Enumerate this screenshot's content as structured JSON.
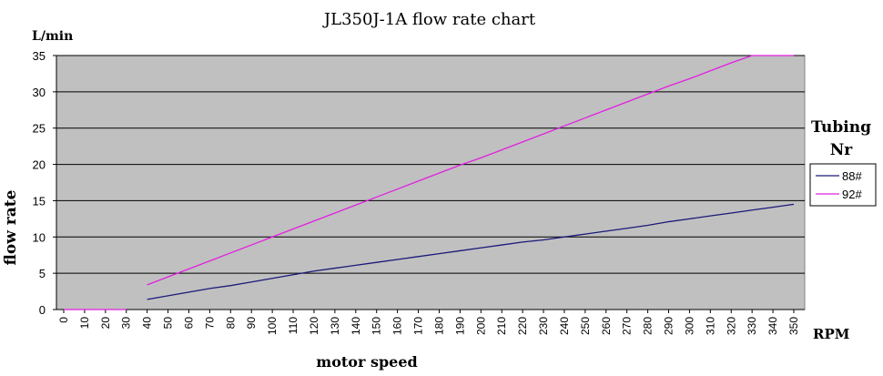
{
  "chart_data": {
    "type": "line",
    "title": "JL350J-1A flow rate chart",
    "xlabel": "motor speed",
    "ylabel": "flow rate",
    "x_unit": "RPM",
    "y_unit": "L/min",
    "x": [
      0,
      10,
      20,
      30,
      40,
      50,
      60,
      70,
      80,
      90,
      100,
      110,
      120,
      130,
      140,
      150,
      160,
      170,
      180,
      190,
      200,
      210,
      220,
      230,
      240,
      250,
      260,
      270,
      280,
      290,
      300,
      310,
      320,
      330,
      340,
      350
    ],
    "ylim": [
      0,
      35
    ],
    "yticks": [
      0,
      5,
      10,
      15,
      20,
      25,
      30,
      35
    ],
    "grid": true,
    "legend": {
      "title": "Tubing Nr",
      "placement": "right"
    },
    "series": [
      {
        "name": "88#",
        "color": "#1a1a7a",
        "values": [
          0,
          0,
          0,
          0,
          1.4,
          1.9,
          2.4,
          2.9,
          3.3,
          3.8,
          4.3,
          4.8,
          5.3,
          5.7,
          6.1,
          6.5,
          6.9,
          7.3,
          7.7,
          8.1,
          8.5,
          8.9,
          9.3,
          9.6,
          10.0,
          10.4,
          10.8,
          11.2,
          11.6,
          12.1,
          12.5,
          12.9,
          13.3,
          13.7,
          14.1,
          14.5
        ]
      },
      {
        "name": "92#",
        "color": "#e020e0",
        "values": [
          0,
          0,
          0,
          0,
          3.4,
          4.5,
          5.6,
          6.7,
          7.8,
          8.9,
          10.0,
          11.1,
          12.2,
          13.3,
          14.4,
          15.5,
          16.6,
          17.7,
          18.8,
          19.9,
          20.9,
          22.0,
          23.1,
          24.2,
          25.3,
          26.4,
          27.5,
          28.6,
          29.7,
          30.8,
          31.8,
          32.9,
          34.0,
          35.0,
          36.1,
          37.0
        ]
      }
    ]
  }
}
